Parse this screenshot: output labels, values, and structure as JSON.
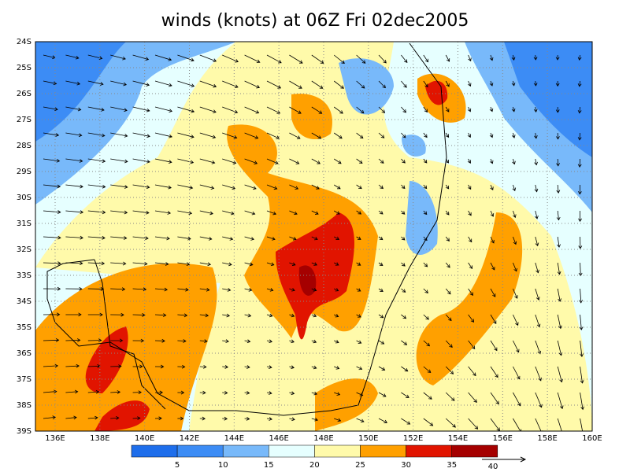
{
  "title": "winds (knots) at 06Z Fri 02dec2005",
  "lat_labels": [
    "24S",
    "25S",
    "26S",
    "27S",
    "28S",
    "29S",
    "30S",
    "31S",
    "32S",
    "33S",
    "34S",
    "35S",
    "36S",
    "37S",
    "38S",
    "39S"
  ],
  "lon_labels": [
    "136E",
    "138E",
    "140E",
    "142E",
    "144E",
    "146E",
    "148E",
    "150E",
    "152E",
    "154E",
    "156E",
    "158E",
    "160E"
  ],
  "colorbar": {
    "colors": [
      "#1e6eeb",
      "#3c8cf5",
      "#78b9fa",
      "#e6ffff",
      "#fffaaa",
      "#ffa000",
      "#e11400",
      "#a50000"
    ],
    "labels": [
      "5",
      "10",
      "15",
      "20",
      "25",
      "30",
      "35"
    ]
  },
  "vector_reference": "40"
}
